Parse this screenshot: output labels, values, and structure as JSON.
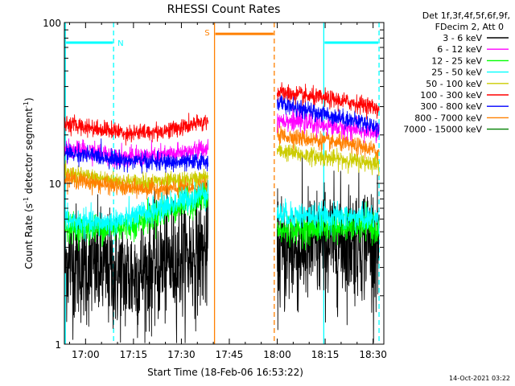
{
  "chart_data": {
    "type": "line",
    "title": "RHESSI Count Rates",
    "xlabel": "Start Time (18-Feb-06 16:53:22)",
    "ylabel_main": "Count Rate (s",
    "ylabel_sup1": "-1",
    "ylabel_mid": " detector segment",
    "ylabel_sup2": "-1",
    "ylabel_end": ")",
    "x_unit": "minutes after 16:53:22",
    "xlim": [
      0,
      100
    ],
    "ylim": [
      1,
      100
    ],
    "yscale": "log",
    "x_ticks": [
      {
        "label": "17:00",
        "value": 6.63
      },
      {
        "label": "17:15",
        "value": 21.63
      },
      {
        "label": "17:30",
        "value": 36.63
      },
      {
        "label": "17:45",
        "value": 51.63
      },
      {
        "label": "18:00",
        "value": 66.63
      },
      {
        "label": "18:15",
        "value": 81.63
      },
      {
        "label": "18:30",
        "value": 96.63
      }
    ],
    "y_ticks": [
      {
        "label": "1",
        "value": 1
      },
      {
        "label": "10",
        "value": 10
      },
      {
        "label": "100",
        "value": 100
      }
    ],
    "legend_header": [
      "Det 1f,3f,4f,5f,6f,9f,",
      "FDecim 2, Att 0"
    ],
    "legend_position": "right",
    "series": [
      {
        "name": "3 - 6 keV",
        "color": "#000000",
        "noise": 0.42,
        "seg1": [
          [
            0,
            3.3
          ],
          [
            10,
            3.0
          ],
          [
            20,
            2.6
          ],
          [
            30,
            3.1
          ],
          [
            40,
            3.6
          ],
          [
            45,
            3.8
          ]
        ],
        "seg2": [
          [
            66.6,
            3.6
          ],
          [
            75,
            3.9
          ],
          [
            85,
            4.3
          ],
          [
            95,
            4.5
          ],
          [
            98.5,
            4.1
          ]
        ]
      },
      {
        "name": "6 - 12 keV",
        "color": "#ff00ff",
        "noise": 0.07,
        "seg1": [
          [
            0,
            16.5
          ],
          [
            10,
            15.5
          ],
          [
            20,
            14.5
          ],
          [
            30,
            14.8
          ],
          [
            40,
            15.8
          ],
          [
            45,
            16.5
          ]
        ],
        "seg2": [
          [
            66.6,
            25
          ],
          [
            75,
            24
          ],
          [
            85,
            22.5
          ],
          [
            95,
            21
          ],
          [
            98.5,
            20.5
          ]
        ]
      },
      {
        "name": "12 - 25 keV",
        "color": "#00ff00",
        "noise": 0.1,
        "seg1": [
          [
            0,
            5.4
          ],
          [
            10,
            5.2
          ],
          [
            20,
            5.4
          ],
          [
            30,
            6.5
          ],
          [
            40,
            7.7
          ],
          [
            45,
            8.2
          ]
        ],
        "seg2": [
          [
            66.6,
            5.0
          ],
          [
            75,
            5.2
          ],
          [
            85,
            5.3
          ],
          [
            95,
            5.4
          ],
          [
            98.5,
            5.1
          ]
        ]
      },
      {
        "name": "25 - 50 keV",
        "color": "#00ffff",
        "noise": 0.09,
        "seg1": [
          [
            0,
            5.9
          ],
          [
            10,
            5.6
          ],
          [
            20,
            6.0
          ],
          [
            30,
            7.0
          ],
          [
            40,
            8.2
          ],
          [
            45,
            9.0
          ]
        ],
        "seg2": [
          [
            66.6,
            6.4
          ],
          [
            75,
            6.3
          ],
          [
            85,
            6.2
          ],
          [
            95,
            6.1
          ],
          [
            98.5,
            6.0
          ]
        ]
      },
      {
        "name": "50 - 100 keV",
        "color": "#cccc00",
        "noise": 0.06,
        "seg1": [
          [
            0,
            11.5
          ],
          [
            10,
            10.8
          ],
          [
            20,
            10.2
          ],
          [
            30,
            10.2
          ],
          [
            40,
            10.5
          ],
          [
            45,
            11.0
          ]
        ],
        "seg2": [
          [
            66.6,
            16
          ],
          [
            75,
            15
          ],
          [
            85,
            14.2
          ],
          [
            95,
            13.5
          ],
          [
            98.5,
            13.2
          ]
        ]
      },
      {
        "name": "100 - 300 keV",
        "color": "#ff0000",
        "noise": 0.06,
        "seg1": [
          [
            0,
            23.5
          ],
          [
            10,
            22
          ],
          [
            20,
            20.5
          ],
          [
            30,
            21
          ],
          [
            40,
            23
          ],
          [
            45,
            24.5
          ]
        ],
        "seg2": [
          [
            66.6,
            37
          ],
          [
            75,
            35
          ],
          [
            85,
            33
          ],
          [
            95,
            30.5
          ],
          [
            98.5,
            29
          ]
        ]
      },
      {
        "name": "300 - 800 keV",
        "color": "#0000ff",
        "noise": 0.06,
        "seg1": [
          [
            0,
            15.5
          ],
          [
            10,
            14.8
          ],
          [
            20,
            13.8
          ],
          [
            30,
            13.5
          ],
          [
            40,
            13.5
          ],
          [
            45,
            13.8
          ]
        ],
        "seg2": [
          [
            66.6,
            32
          ],
          [
            75,
            28.5
          ],
          [
            85,
            26
          ],
          [
            95,
            23.5
          ],
          [
            98.5,
            22
          ]
        ]
      },
      {
        "name": "800 - 7000 keV",
        "color": "#ff8000",
        "noise": 0.06,
        "seg1": [
          [
            0,
            10.8
          ],
          [
            10,
            10.0
          ],
          [
            20,
            9.3
          ],
          [
            30,
            9.2
          ],
          [
            40,
            9.3
          ],
          [
            45,
            9.5
          ]
        ],
        "seg2": [
          [
            66.6,
            20
          ],
          [
            75,
            19
          ],
          [
            85,
            18
          ],
          [
            95,
            16.5
          ],
          [
            98.5,
            15.5
          ]
        ]
      },
      {
        "name": "7000 - 15000 keV",
        "color": "#008000",
        "noise": 0.0,
        "seg1": [],
        "seg2": []
      }
    ],
    "markers": [
      {
        "label": "N",
        "color": "#00ffff",
        "start": 0.3,
        "end": 15.4,
        "level": 75
      },
      {
        "label": "S",
        "color": "#ff8000",
        "start": 47.0,
        "end": 65.7,
        "level": 85
      },
      {
        "label": "",
        "color": "#00ffff",
        "start": 81.2,
        "end": 98.5,
        "level": 75
      }
    ],
    "footer_date": "14-Oct-2021 03:22"
  }
}
